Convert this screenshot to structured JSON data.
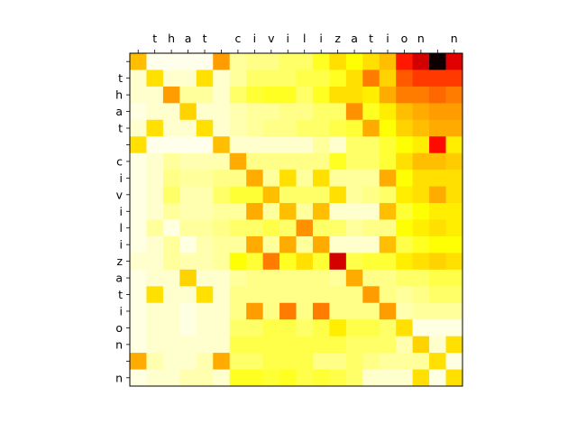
{
  "chart_data": {
    "type": "heatmap",
    "title": "",
    "xlabel": "",
    "ylabel": "",
    "colormap": "hot_r",
    "value_range": [
      0,
      1
    ],
    "grid": false,
    "x_tick_position": "top",
    "x_labels": [
      " ",
      "t",
      "h",
      "a",
      "t",
      " ",
      "c",
      "i",
      "v",
      "i",
      "l",
      "i",
      "z",
      "a",
      "t",
      "i",
      "o",
      "n",
      " ",
      "n"
    ],
    "y_labels": [
      " ",
      "t",
      "h",
      "a",
      "t",
      " ",
      "c",
      "i",
      "v",
      "i",
      "l",
      "i",
      "z",
      "a",
      "t",
      "i",
      "o",
      "n",
      " ",
      "n"
    ],
    "matrix": [
      [
        0.35,
        0.02,
        0.02,
        0.02,
        0.02,
        0.4,
        0.1,
        0.12,
        0.12,
        0.15,
        0.15,
        0.22,
        0.3,
        0.25,
        0.3,
        0.35,
        0.6,
        0.7,
        0.98,
        0.68
      ],
      [
        0.05,
        0.3,
        0.05,
        0.05,
        0.3,
        0.05,
        0.1,
        0.15,
        0.15,
        0.15,
        0.18,
        0.18,
        0.22,
        0.3,
        0.45,
        0.32,
        0.5,
        0.55,
        0.55,
        0.55
      ],
      [
        0.05,
        0.05,
        0.4,
        0.1,
        0.1,
        0.05,
        0.15,
        0.2,
        0.22,
        0.22,
        0.15,
        0.22,
        0.3,
        0.3,
        0.28,
        0.38,
        0.45,
        0.45,
        0.48,
        0.45
      ],
      [
        0.03,
        0.05,
        0.05,
        0.32,
        0.05,
        0.05,
        0.08,
        0.1,
        0.1,
        0.12,
        0.12,
        0.15,
        0.15,
        0.42,
        0.22,
        0.28,
        0.35,
        0.38,
        0.4,
        0.4
      ],
      [
        0.05,
        0.3,
        0.05,
        0.05,
        0.3,
        0.05,
        0.08,
        0.1,
        0.12,
        0.12,
        0.15,
        0.15,
        0.18,
        0.2,
        0.38,
        0.25,
        0.32,
        0.35,
        0.38,
        0.38
      ],
      [
        0.3,
        0.02,
        0.02,
        0.02,
        0.02,
        0.35,
        0.05,
        0.05,
        0.05,
        0.05,
        0.05,
        0.1,
        0.05,
        0.15,
        0.15,
        0.2,
        0.25,
        0.28,
        0.62,
        0.28
      ],
      [
        0.03,
        0.05,
        0.1,
        0.08,
        0.08,
        0.08,
        0.38,
        0.12,
        0.12,
        0.12,
        0.12,
        0.12,
        0.22,
        0.15,
        0.15,
        0.2,
        0.3,
        0.35,
        0.35,
        0.33
      ],
      [
        0.03,
        0.05,
        0.12,
        0.1,
        0.1,
        0.12,
        0.12,
        0.38,
        0.1,
        0.3,
        0.1,
        0.3,
        0.1,
        0.1,
        0.1,
        0.38,
        0.25,
        0.3,
        0.3,
        0.3
      ],
      [
        0.03,
        0.05,
        0.15,
        0.08,
        0.08,
        0.15,
        0.2,
        0.2,
        0.35,
        0.15,
        0.15,
        0.15,
        0.3,
        0.1,
        0.12,
        0.15,
        0.28,
        0.3,
        0.38,
        0.3
      ],
      [
        0.03,
        0.05,
        0.1,
        0.08,
        0.08,
        0.1,
        0.1,
        0.38,
        0.1,
        0.35,
        0.1,
        0.35,
        0.05,
        0.05,
        0.05,
        0.35,
        0.2,
        0.25,
        0.28,
        0.28
      ],
      [
        0.03,
        0.1,
        0.03,
        0.1,
        0.1,
        0.12,
        0.15,
        0.15,
        0.18,
        0.15,
        0.42,
        0.15,
        0.15,
        0.1,
        0.12,
        0.12,
        0.25,
        0.28,
        0.3,
        0.28
      ],
      [
        0.03,
        0.05,
        0.1,
        0.03,
        0.08,
        0.1,
        0.1,
        0.38,
        0.1,
        0.38,
        0.1,
        0.38,
        0.05,
        0.05,
        0.05,
        0.35,
        0.18,
        0.22,
        0.25,
        0.25
      ],
      [
        0.05,
        0.05,
        0.1,
        0.08,
        0.08,
        0.1,
        0.25,
        0.2,
        0.45,
        0.22,
        0.3,
        0.2,
        0.7,
        0.18,
        0.2,
        0.2,
        0.28,
        0.3,
        0.32,
        0.3
      ],
      [
        0.03,
        0.05,
        0.05,
        0.32,
        0.05,
        0.05,
        0.1,
        0.12,
        0.12,
        0.12,
        0.12,
        0.12,
        0.1,
        0.38,
        0.12,
        0.12,
        0.15,
        0.15,
        0.18,
        0.18
      ],
      [
        0.03,
        0.3,
        0.05,
        0.05,
        0.3,
        0.05,
        0.12,
        0.12,
        0.12,
        0.12,
        0.12,
        0.12,
        0.12,
        0.12,
        0.4,
        0.12,
        0.1,
        0.12,
        0.15,
        0.15
      ],
      [
        0.03,
        0.05,
        0.05,
        0.03,
        0.05,
        0.05,
        0.12,
        0.4,
        0.12,
        0.45,
        0.12,
        0.45,
        0.12,
        0.12,
        0.12,
        0.4,
        0.08,
        0.1,
        0.1,
        0.1
      ],
      [
        0.03,
        0.05,
        0.05,
        0.03,
        0.05,
        0.05,
        0.15,
        0.15,
        0.18,
        0.18,
        0.15,
        0.18,
        0.28,
        0.18,
        0.18,
        0.15,
        0.3,
        0.03,
        0.03,
        0.03
      ],
      [
        0.03,
        0.05,
        0.05,
        0.05,
        0.05,
        0.05,
        0.18,
        0.18,
        0.18,
        0.18,
        0.18,
        0.18,
        0.18,
        0.15,
        0.15,
        0.15,
        0.08,
        0.32,
        0.05,
        0.3
      ],
      [
        0.38,
        0.08,
        0.05,
        0.05,
        0.08,
        0.38,
        0.15,
        0.15,
        0.18,
        0.18,
        0.18,
        0.12,
        0.12,
        0.15,
        0.12,
        0.1,
        0.1,
        0.1,
        0.3,
        0.03
      ],
      [
        0.03,
        0.05,
        0.05,
        0.08,
        0.08,
        0.05,
        0.22,
        0.22,
        0.2,
        0.22,
        0.18,
        0.2,
        0.18,
        0.15,
        0.05,
        0.05,
        0.05,
        0.3,
        0.03,
        0.3
      ]
    ]
  }
}
